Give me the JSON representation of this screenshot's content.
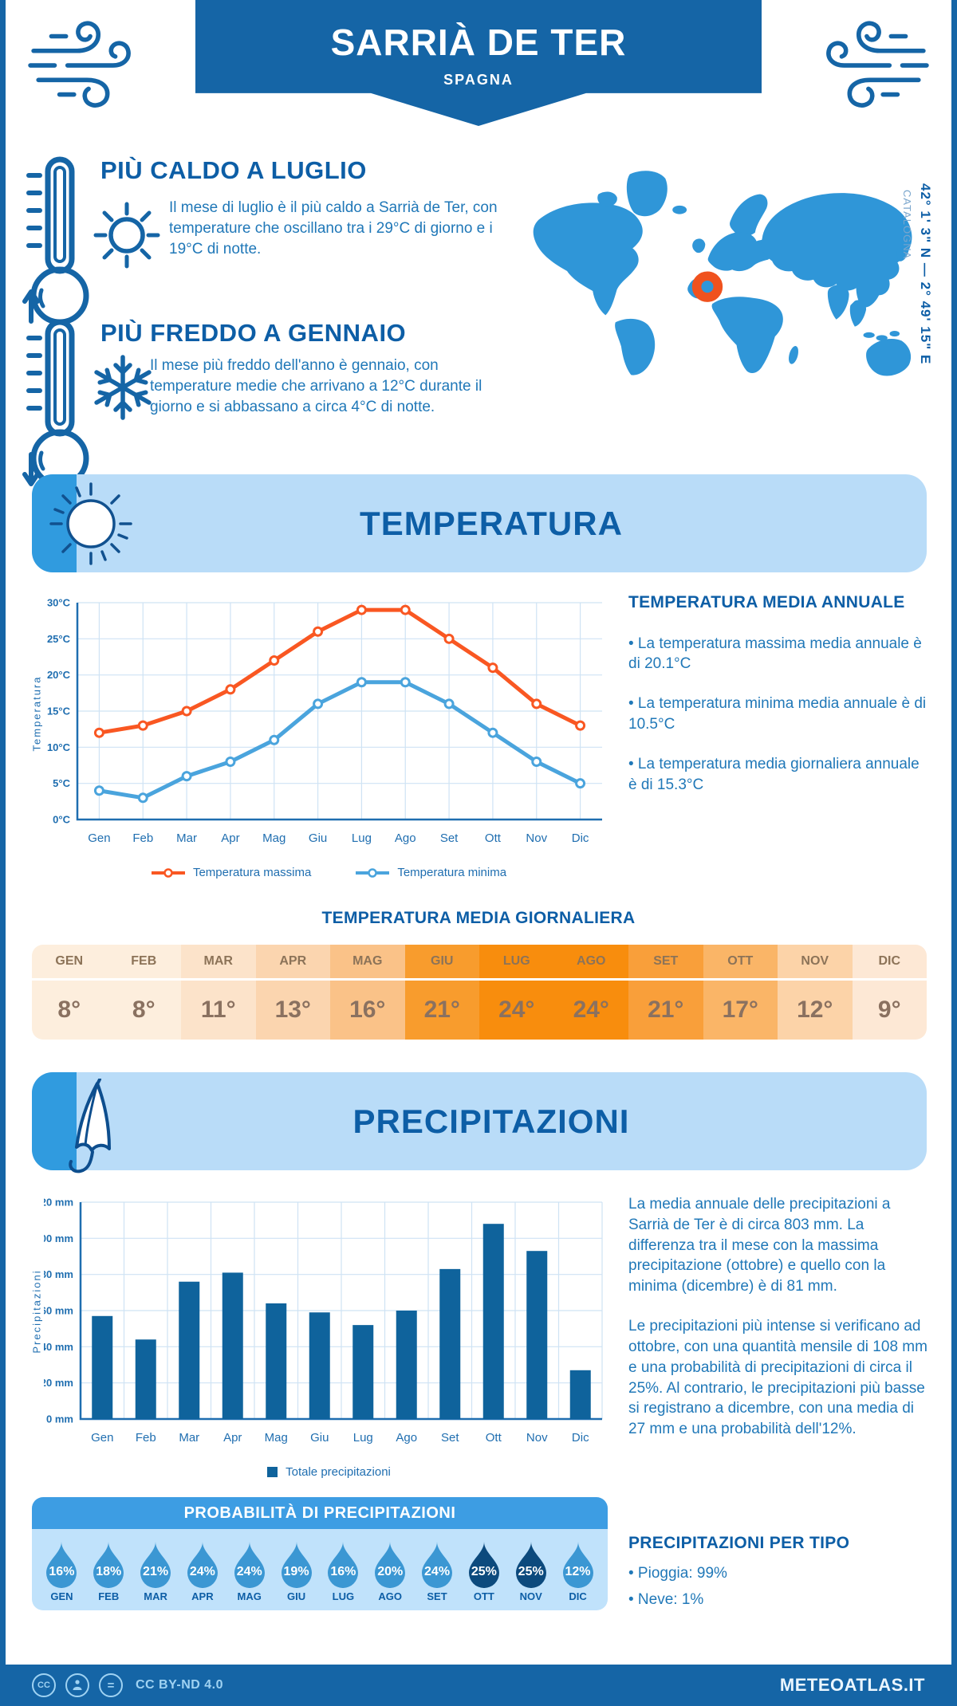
{
  "header": {
    "title": "SARRIÀ DE TER",
    "subtitle": "SPAGNA"
  },
  "highlights": {
    "warm": {
      "title": "PIÙ CALDO A LUGLIO",
      "text": "Il mese di luglio è il più caldo a Sarrià de Ter, con temperature che oscillano tra i 29°C di giorno e i 19°C di notte."
    },
    "cold": {
      "title": "PIÙ FREDDO A GENNAIO",
      "text": "Il mese più freddo dell'anno è gennaio, con temperature medie che arrivano a 12°C durante il giorno e si abbassano a circa 4°C di notte."
    }
  },
  "map": {
    "coordinates": "42° 1' 3\" N — 2° 49' 15\" E",
    "region": "CATALOGNA"
  },
  "sections": {
    "temperature": "TEMPERATURA",
    "precipitation": "PRECIPITAZIONI"
  },
  "temperature": {
    "annual": {
      "title": "TEMPERATURA MEDIA ANNUALE",
      "bullets": [
        "• La temperatura massima media annuale è di 20.1°C",
        "• La temperatura minima media annuale è di 10.5°C",
        "• La temperatura media giornaliera annuale è di 15.3°C"
      ]
    },
    "daily": {
      "title": "TEMPERATURA MEDIA GIORNALIERA",
      "months": [
        "GEN",
        "FEB",
        "MAR",
        "APR",
        "MAG",
        "GIU",
        "LUG",
        "AGO",
        "SET",
        "OTT",
        "NOV",
        "DIC"
      ],
      "values": [
        "8°",
        "8°",
        "11°",
        "13°",
        "16°",
        "21°",
        "24°",
        "24°",
        "21°",
        "17°",
        "12°",
        "9°"
      ],
      "cell_colors": [
        "#fdeedd",
        "#fdeedd",
        "#fce3ca",
        "#fbd5af",
        "#fac288",
        "#f89c2d",
        "#f88d0d",
        "#f88d0d",
        "#f99f3a",
        "#fab567",
        "#fcd3a8",
        "#fde8d5"
      ]
    }
  },
  "precipitation": {
    "paragraphs": [
      "La media annuale delle precipitazioni a Sarrià de Ter è di circa 803 mm. La differenza tra il mese con la massima precipitazione (ottobre) e quello con la minima (dicembre) è di 81 mm.",
      "Le precipitazioni più intense si verificano ad ottobre, con una quantità mensile di 108 mm e una probabilità di precipitazioni di circa il 25%. Al contrario, le precipitazioni più basse si registrano a dicembre, con una media di 27 mm e una probabilità dell'12%."
    ],
    "probability": {
      "title": "PROBABILITÀ DI PRECIPITAZIONI",
      "months": [
        "GEN",
        "FEB",
        "MAR",
        "APR",
        "MAG",
        "GIU",
        "LUG",
        "AGO",
        "SET",
        "OTT",
        "NOV",
        "DIC"
      ],
      "values": [
        "16%",
        "18%",
        "21%",
        "24%",
        "24%",
        "19%",
        "16%",
        "20%",
        "24%",
        "25%",
        "25%",
        "12%"
      ],
      "dark": [
        0,
        0,
        0,
        0,
        0,
        0,
        0,
        0,
        0,
        1,
        1,
        0
      ],
      "drop_color": "#3b97d3",
      "drop_color_dark": "#0c4a7d"
    },
    "by_type": {
      "title": "PRECIPITAZIONI PER TIPO",
      "items": [
        "• Pioggia: 99%",
        "• Neve: 1%"
      ]
    }
  },
  "footer": {
    "license": "CC BY-ND 4.0",
    "brand": "METEOATLAS.IT"
  },
  "colors": {
    "dark_blue": "#1565a6",
    "heading_blue": "#0d5ea6",
    "body_blue": "#2078b8",
    "banner_light": "#b9dcf8",
    "accent_blue": "#309bdf",
    "map_blue": "#2f96d8",
    "marker_orange": "#f0521e",
    "grid": "#cfe3f4",
    "axis_blue": "#1f6eb0"
  },
  "chart_data": [
    {
      "type": "line",
      "title": "TEMPERATURA",
      "categories": [
        "Gen",
        "Feb",
        "Mar",
        "Apr",
        "Mag",
        "Giu",
        "Lug",
        "Ago",
        "Set",
        "Ott",
        "Nov",
        "Dic"
      ],
      "series": [
        {
          "name": "Temperatura massima",
          "color": "#f95722",
          "values": [
            12,
            13,
            15,
            18,
            22,
            26,
            29,
            29,
            25,
            21,
            16,
            13
          ]
        },
        {
          "name": "Temperatura minima",
          "color": "#4aa4dd",
          "values": [
            4,
            3,
            6,
            8,
            11,
            16,
            19,
            19,
            16,
            12,
            8,
            5
          ]
        }
      ],
      "xlabel": "",
      "ylabel": "Temperatura",
      "ylim": [
        0,
        30
      ],
      "ytick_step": 5,
      "ytick_suffix": "°C",
      "grid": true,
      "legend_position": "bottom"
    },
    {
      "type": "bar",
      "title": "PRECIPITAZIONI",
      "categories": [
        "Gen",
        "Feb",
        "Mar",
        "Apr",
        "Mag",
        "Giu",
        "Lug",
        "Ago",
        "Set",
        "Ott",
        "Nov",
        "Dic"
      ],
      "series": [
        {
          "name": "Totale precipitazioni",
          "color": "#0f639c",
          "values": [
            57,
            44,
            76,
            81,
            64,
            59,
            52,
            60,
            83,
            108,
            93,
            27
          ]
        }
      ],
      "xlabel": "",
      "ylabel": "Precipitazioni",
      "ylim": [
        0,
        120
      ],
      "ytick_step": 20,
      "ytick_suffix": " mm",
      "grid": true,
      "legend_position": "bottom"
    }
  ]
}
